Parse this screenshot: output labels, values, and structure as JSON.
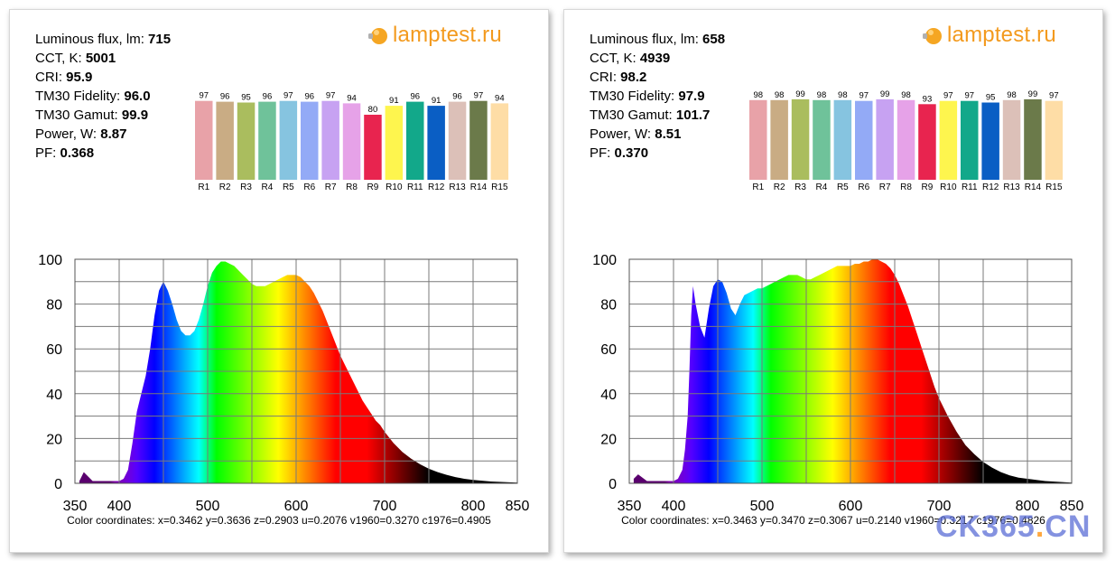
{
  "logo_text": "lamptest.ru",
  "watermark": {
    "main": "CK365",
    "dot": ".",
    "tld": "CN"
  },
  "panels": [
    {
      "stats": [
        {
          "label": "Luminous flux, lm: ",
          "value": "715"
        },
        {
          "label": "CCT, K: ",
          "value": "5001"
        },
        {
          "label": "CRI: ",
          "value": "95.9"
        },
        {
          "label": "TM30 Fidelity: ",
          "value": "96.0"
        },
        {
          "label": "TM30 Gamut: ",
          "value": "99.9"
        },
        {
          "label": "Power, W:  ",
          "value": "8.87"
        },
        {
          "label": "PF:  ",
          "value": "0.368"
        }
      ],
      "coords_label": "Color coordinates: x=0.3462 y=0.3636 z=0.2903 u=0.2076 v1960=0.3270 c1976=0.4905"
    },
    {
      "stats": [
        {
          "label": "Luminous flux, lm: ",
          "value": "658"
        },
        {
          "label": "CCT, K: ",
          "value": "4939"
        },
        {
          "label": "CRI: ",
          "value": "98.2"
        },
        {
          "label": "TM30 Fidelity: ",
          "value": "97.9"
        },
        {
          "label": "TM30 Gamut: ",
          "value": "101.7"
        },
        {
          "label": "Power, W:  ",
          "value": "8.51"
        },
        {
          "label": "PF:  ",
          "value": "0.370"
        }
      ],
      "coords_label": "Color coordinates: x=0.3463 y=0.3470 z=0.3067 u=0.2140 v1960=0.3217 c1976=0.4826"
    }
  ],
  "chart_data": [
    {
      "type": "bar",
      "categories": [
        "R1",
        "R2",
        "R3",
        "R4",
        "R5",
        "R6",
        "R7",
        "R8",
        "R9",
        "R10",
        "R11",
        "R12",
        "R13",
        "R14",
        "R15"
      ],
      "values": [
        97,
        96,
        95,
        96,
        97,
        96,
        97,
        94,
        80,
        91,
        96,
        91,
        96,
        97,
        94
      ],
      "colors": [
        "#e8a2a8",
        "#c9ac84",
        "#aabd5e",
        "#6fc29a",
        "#86c4e0",
        "#93aaf6",
        "#c7a2f2",
        "#e6a2e8",
        "#e8244f",
        "#fef54e",
        "#12a88a",
        "#0a5ec4",
        "#dcc0b8",
        "#6b7a4a",
        "#fedda6"
      ],
      "ylim": [
        0,
        100
      ]
    },
    {
      "type": "area",
      "title": "",
      "xlabel": "",
      "ylabel": "",
      "xlim": [
        350,
        850
      ],
      "ylim": [
        0,
        100
      ],
      "xticks": [
        350,
        400,
        500,
        600,
        700,
        800,
        850
      ],
      "yticks": [
        0,
        20,
        40,
        60,
        80,
        100
      ],
      "grid": true,
      "x": [
        355,
        360,
        370,
        380,
        390,
        400,
        405,
        410,
        415,
        420,
        425,
        430,
        435,
        440,
        445,
        450,
        455,
        460,
        465,
        470,
        475,
        480,
        485,
        490,
        495,
        500,
        505,
        510,
        515,
        520,
        525,
        530,
        535,
        540,
        545,
        550,
        555,
        560,
        565,
        570,
        575,
        580,
        585,
        590,
        595,
        600,
        605,
        610,
        615,
        620,
        625,
        630,
        635,
        640,
        645,
        650,
        655,
        660,
        665,
        670,
        675,
        680,
        685,
        690,
        695,
        700,
        710,
        720,
        730,
        740,
        750,
        760,
        770,
        780,
        790,
        800,
        820,
        850
      ],
      "y": [
        1,
        5,
        1,
        1,
        1,
        1,
        2,
        6,
        18,
        32,
        40,
        48,
        60,
        75,
        86,
        90,
        86,
        80,
        73,
        68,
        66,
        66,
        68,
        73,
        80,
        88,
        94,
        97,
        99,
        99,
        98,
        97,
        95,
        93,
        91,
        89,
        88,
        88,
        88,
        89,
        90,
        91,
        92,
        93,
        93,
        93,
        92,
        90,
        88,
        85,
        81,
        77,
        72,
        67,
        62,
        57,
        53,
        49,
        45,
        41,
        37,
        34,
        31,
        28,
        26,
        23,
        18,
        14,
        11,
        8.5,
        6.5,
        5,
        3.8,
        2.8,
        2,
        1.5,
        0.8,
        0.3
      ]
    },
    {
      "type": "bar",
      "categories": [
        "R1",
        "R2",
        "R3",
        "R4",
        "R5",
        "R6",
        "R7",
        "R8",
        "R9",
        "R10",
        "R11",
        "R12",
        "R13",
        "R14",
        "R15"
      ],
      "values": [
        98,
        98,
        99,
        98,
        98,
        97,
        99,
        98,
        93,
        97,
        97,
        95,
        98,
        99,
        97
      ],
      "colors": [
        "#e8a2a8",
        "#c9ac84",
        "#aabd5e",
        "#6fc29a",
        "#86c4e0",
        "#93aaf6",
        "#c7a2f2",
        "#e6a2e8",
        "#e8244f",
        "#fef54e",
        "#12a88a",
        "#0a5ec4",
        "#dcc0b8",
        "#6b7a4a",
        "#fedda6"
      ],
      "ylim": [
        0,
        100
      ]
    },
    {
      "type": "area",
      "title": "",
      "xlabel": "",
      "ylabel": "",
      "xlim": [
        350,
        850
      ],
      "ylim": [
        0,
        100
      ],
      "xticks": [
        350,
        400,
        500,
        600,
        700,
        800,
        850
      ],
      "yticks": [
        0,
        20,
        40,
        60,
        80,
        100
      ],
      "grid": true,
      "x": [
        355,
        360,
        370,
        380,
        390,
        400,
        405,
        410,
        413,
        416,
        418,
        420,
        422,
        425,
        430,
        435,
        440,
        445,
        450,
        455,
        460,
        465,
        470,
        475,
        480,
        485,
        490,
        495,
        500,
        505,
        510,
        515,
        520,
        525,
        530,
        535,
        540,
        545,
        550,
        555,
        560,
        565,
        570,
        575,
        580,
        585,
        590,
        595,
        600,
        605,
        610,
        615,
        620,
        625,
        630,
        635,
        640,
        645,
        650,
        655,
        660,
        665,
        670,
        675,
        680,
        685,
        690,
        695,
        700,
        710,
        720,
        730,
        740,
        750,
        760,
        770,
        780,
        790,
        800,
        820,
        850
      ],
      "y": [
        2,
        4,
        1,
        1,
        1,
        1,
        2,
        6,
        15,
        30,
        50,
        75,
        88,
        80,
        70,
        65,
        78,
        88,
        91,
        90,
        85,
        78,
        75,
        80,
        84,
        85,
        86,
        87,
        87,
        88,
        89,
        90,
        91,
        92,
        93,
        93,
        93,
        92,
        91,
        91,
        92,
        93,
        94,
        95,
        96,
        97,
        97,
        97,
        97,
        98,
        98,
        99,
        99,
        100,
        100,
        99,
        98,
        96,
        93,
        89,
        84,
        79,
        73,
        67,
        61,
        55,
        49,
        43,
        38,
        30,
        23,
        17,
        13,
        9.5,
        7,
        5,
        3.5,
        2.5,
        2,
        1,
        0.3
      ]
    }
  ]
}
